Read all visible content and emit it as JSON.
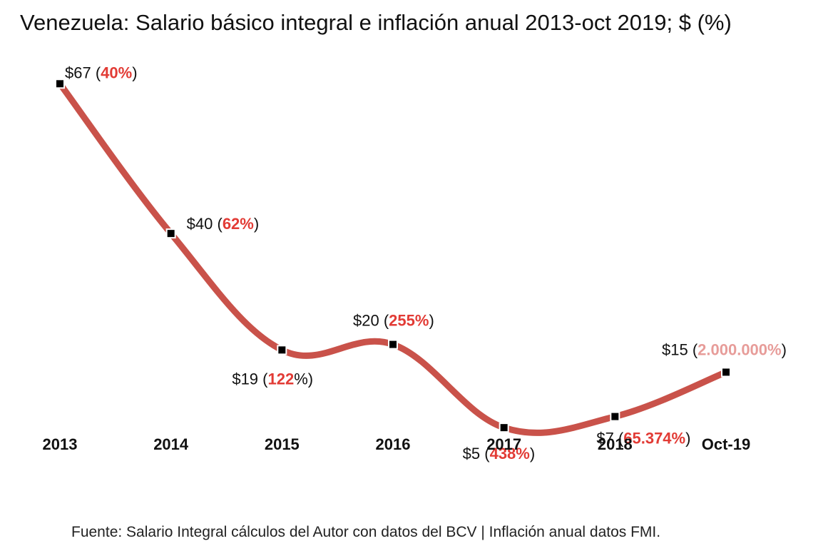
{
  "title": "Venezuela: Salario básico integral e inflación anual 2013-oct 2019; $ (%)",
  "source": "Fuente: Salario Integral cálculos del Autor con datos del BCV | Inflación anual datos FMI.",
  "colors": {
    "line": "#c9524a",
    "inflation": "#e23b35",
    "inflation_faded": "#e79c99",
    "marker": "#000000"
  },
  "chart_data": {
    "type": "line",
    "title": "Venezuela: Salario básico integral e inflación anual 2013-oct 2019; $ (%)",
    "xlabel": "",
    "ylabel": "",
    "categories": [
      "2013",
      "2014",
      "2015",
      "2016",
      "2017",
      "2018",
      "Oct-19"
    ],
    "series": [
      {
        "values": [
          67,
          40,
          19,
          20,
          5,
          7,
          15
        ]
      }
    ],
    "inflation_labels": [
      "40%",
      "62%",
      "122",
      "255%",
      "438%",
      "65.374%",
      "2.000.000%"
    ],
    "point_labels": [
      {
        "salary": "$67",
        "inflation": "40%",
        "suffix": ")"
      },
      {
        "salary": "$40",
        "inflation": "62%",
        "suffix": ")"
      },
      {
        "salary": "$19",
        "inflation": "122",
        "suffix": "%)"
      },
      {
        "salary": "$20",
        "inflation": "255%",
        "suffix": ")"
      },
      {
        "salary": "$5",
        "inflation": "438%",
        "suffix": ")"
      },
      {
        "salary": "$7",
        "inflation": "65.374%",
        "suffix": ")"
      },
      {
        "salary": "$15",
        "inflation": "2.000.000%",
        "suffix": ")"
      }
    ],
    "ylim": [
      0,
      70
    ],
    "grid": false,
    "legend": "none"
  }
}
